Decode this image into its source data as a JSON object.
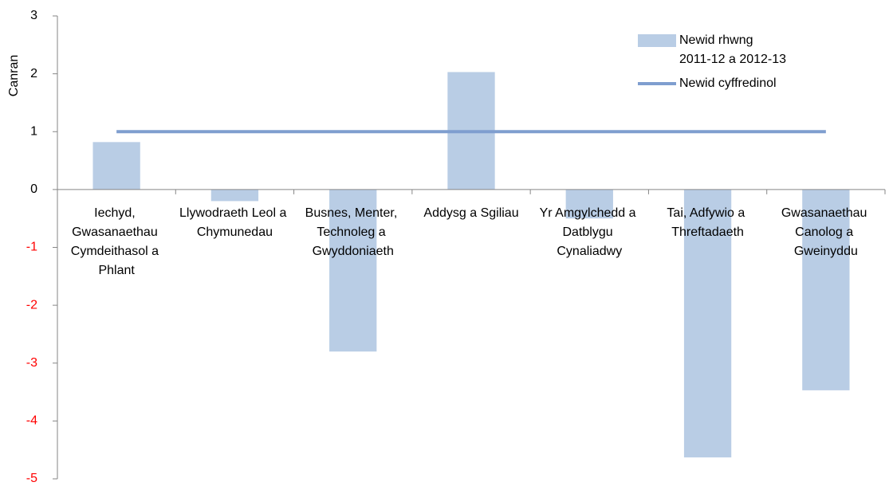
{
  "chart_data": {
    "type": "bar",
    "y_label": "Canran",
    "categories": [
      "Iechyd, Gwasanaethau Cymdeithasol a Phlant",
      "Llywodraeth Leol a Chymunedau",
      "Busnes, Menter, Technoleg a Gwyddoniaeth",
      "Addysg a Sgiliau",
      "Yr Amgylchedd a Datblygu Cynaliadwy",
      "Tai, Adfywio a Threftadaeth",
      "Gwasanaethau Canolog a Gweinyddu"
    ],
    "series": [
      {
        "name": "Newid rhwng 2011-12 a 2012-13",
        "type": "bar",
        "color": "#b9cde5",
        "values": [
          0.82,
          -0.2,
          -2.8,
          2.03,
          -0.5,
          -4.63,
          -3.47
        ]
      },
      {
        "name": "Newid cyffredinol",
        "type": "line",
        "color": "#7f9ecf",
        "values": [
          1,
          1,
          1,
          1,
          1,
          1,
          1
        ]
      }
    ],
    "ylim": [
      -5,
      3
    ],
    "yticks": [
      -5,
      -4,
      -3,
      -2,
      -1,
      0,
      1,
      2,
      3
    ],
    "negative_tick_color": "#ff0000",
    "legend": "top-right",
    "grid": false
  }
}
